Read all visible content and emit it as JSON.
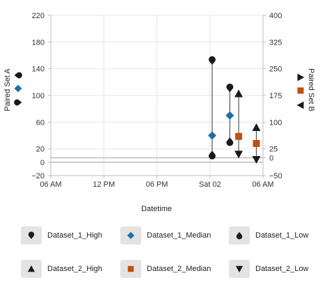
{
  "chart_data": {
    "type": "scatter",
    "xlabel": "Datetime",
    "x_ticks": [
      "06 AM",
      "12 PM",
      "06 PM",
      "Sat 02",
      "06 AM"
    ],
    "x_range": [
      "2020-10-01T06:00",
      "2020-10-02T06:00"
    ],
    "y_left": {
      "label": "Paired Set A",
      "range": [
        -20,
        220
      ],
      "ticks": [
        -20,
        0,
        20,
        60,
        100,
        140,
        180,
        220
      ]
    },
    "y_right": {
      "label": "Paired Set B",
      "range": [
        -50,
        400
      ],
      "ticks": [
        -50,
        0,
        25,
        100,
        175,
        250,
        325,
        400
      ]
    },
    "series": [
      {
        "name": "Dataset_1_High",
        "axis": "left",
        "marker": "drop-down",
        "color": "#1a1a1a",
        "points": [
          [
            "2020-10-02T00:15",
            152
          ],
          [
            "2020-10-02T02:15",
            111
          ]
        ]
      },
      {
        "name": "Dataset_1_Median",
        "axis": "left",
        "marker": "diamond",
        "color": "#1f6fa6",
        "points": [
          [
            "2020-10-02T00:15",
            40
          ],
          [
            "2020-10-02T02:15",
            70
          ]
        ]
      },
      {
        "name": "Dataset_1_Low",
        "axis": "left",
        "marker": "drop-up",
        "color": "#1a1a1a",
        "points": [
          [
            "2020-10-02T00:15",
            11
          ],
          [
            "2020-10-02T02:15",
            31
          ]
        ]
      },
      {
        "name": "Dataset_2_High",
        "axis": "right",
        "marker": "triangle-up",
        "color": "#1a1a1a",
        "points": [
          [
            "2020-10-02T03:15",
            180
          ],
          [
            "2020-10-02T05:15",
            85
          ]
        ]
      },
      {
        "name": "Dataset_2_Median",
        "axis": "right",
        "marker": "square",
        "color": "#c0500f",
        "points": [
          [
            "2020-10-02T03:15",
            60
          ],
          [
            "2020-10-02T05:15",
            40
          ]
        ]
      },
      {
        "name": "Dataset_2_Low",
        "axis": "right",
        "marker": "triangle-down",
        "color": "#1a1a1a",
        "points": [
          [
            "2020-10-02T03:15",
            10
          ],
          [
            "2020-10-02T05:15",
            -5
          ]
        ]
      }
    ],
    "grid": true,
    "legend_position": "bottom"
  }
}
